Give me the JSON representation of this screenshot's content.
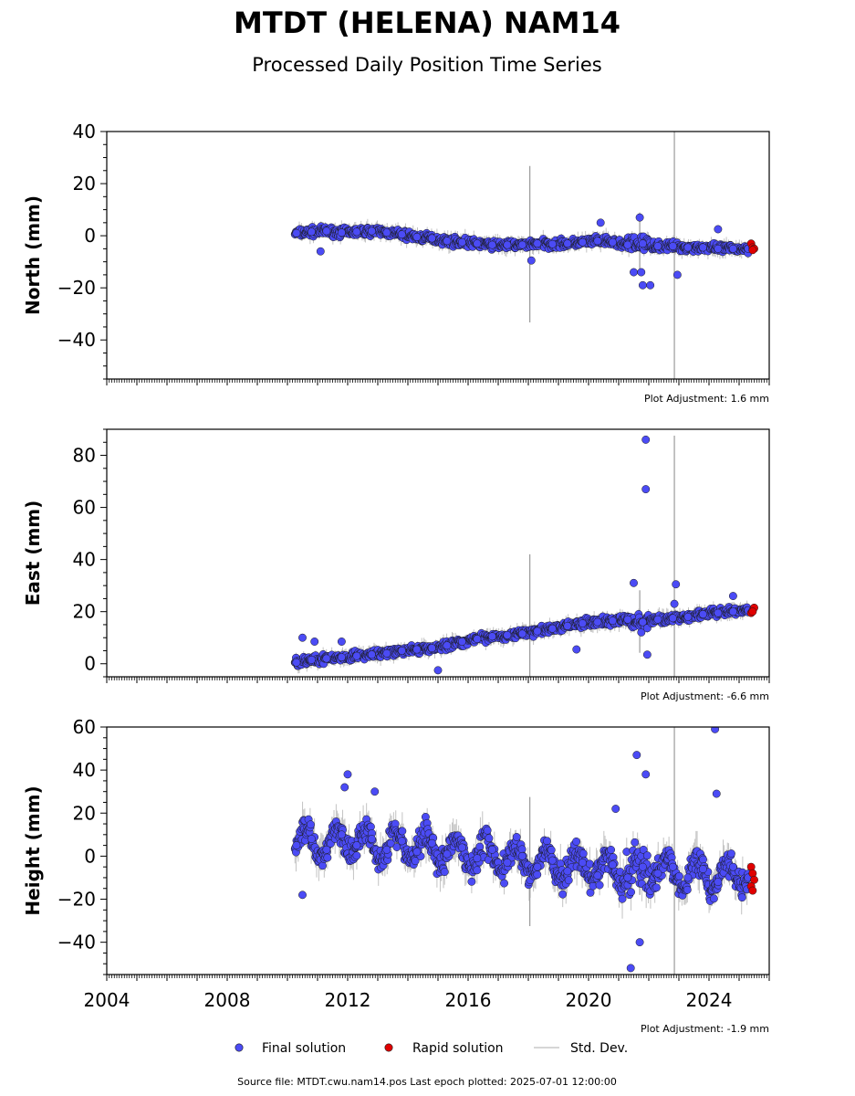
{
  "title": "MTDT (HELENA) NAM14",
  "subtitle": "Processed Daily Position Time Series",
  "footer": "Source file: MTDT.cwu.nam14.pos  Last epoch plotted: 2025-07-01 12:00:00",
  "legend": {
    "final_label": "Final solution",
    "rapid_label": "Rapid solution",
    "std_label": "Std. Dev."
  },
  "colors": {
    "final": "#4b4bf5",
    "rapid": "#e00000",
    "std": "#b4b4b4",
    "marker_edge": "#1a1a1a"
  },
  "chart_data": [
    {
      "type": "scatter",
      "ylabel": "North (mm)",
      "xlim": [
        2004,
        2026
      ],
      "ylim": [
        -55,
        40
      ],
      "yticks": [
        -40,
        -20,
        0,
        20,
        40
      ],
      "adjustment": "Plot Adjustment: 1.6 mm",
      "show_x_labels": false,
      "series": [
        {
          "name": "Final solution",
          "points": [
            [
              2010.3,
              1.0
            ],
            [
              2010.8,
              1.5
            ],
            [
              2011.3,
              1.8
            ],
            [
              2011.8,
              1.2
            ],
            [
              2012.3,
              1.5
            ],
            [
              2012.8,
              1.8
            ],
            [
              2013.3,
              1.2
            ],
            [
              2013.8,
              0.5
            ],
            [
              2014.3,
              -0.5
            ],
            [
              2014.8,
              -1.0
            ],
            [
              2015.3,
              -2.0
            ],
            [
              2015.8,
              -2.5
            ],
            [
              2016.3,
              -3.0
            ],
            [
              2016.8,
              -3.5
            ],
            [
              2017.3,
              -3.5
            ],
            [
              2017.8,
              -3.5
            ],
            [
              2018.3,
              -3.0
            ],
            [
              2018.8,
              -3.2
            ],
            [
              2019.3,
              -3.0
            ],
            [
              2019.8,
              -2.5
            ],
            [
              2020.3,
              -2.0
            ],
            [
              2020.8,
              -2.5
            ],
            [
              2021.3,
              -3.5
            ],
            [
              2021.8,
              -3.0
            ],
            [
              2022.3,
              -4.0
            ],
            [
              2022.8,
              -4.0
            ],
            [
              2023.3,
              -4.5
            ],
            [
              2023.8,
              -4.5
            ],
            [
              2024.3,
              -5.0
            ],
            [
              2024.8,
              -5.0
            ],
            [
              2025.3,
              -5.0
            ],
            [
              2011.1,
              -6.0
            ],
            [
              2018.1,
              -9.5
            ],
            [
              2021.5,
              -14.0
            ],
            [
              2021.75,
              -14.0
            ],
            [
              2021.8,
              -19.0
            ],
            [
              2022.05,
              -19.0
            ],
            [
              2022.95,
              -15.0
            ],
            [
              2024.3,
              2.5
            ],
            [
              2020.4,
              5.0
            ],
            [
              2021.7,
              7.0
            ]
          ]
        },
        {
          "name": "Rapid solution",
          "points": [
            [
              2025.4,
              -3.0
            ],
            [
              2025.45,
              -4.5
            ],
            [
              2025.5,
              -5.0
            ],
            [
              2025.45,
              -5.5
            ]
          ]
        }
      ]
    },
    {
      "type": "scatter",
      "ylabel": "East (mm)",
      "xlim": [
        2004,
        2026
      ],
      "ylim": [
        -5,
        90
      ],
      "yticks": [
        0,
        20,
        40,
        60,
        80
      ],
      "adjustment": "Plot Adjustment: -6.6 mm",
      "show_x_labels": false,
      "series": [
        {
          "name": "Final solution",
          "points": [
            [
              2010.3,
              0.5
            ],
            [
              2010.8,
              1.5
            ],
            [
              2011.3,
              2.0
            ],
            [
              2011.8,
              2.5
            ],
            [
              2012.3,
              3.0
            ],
            [
              2012.8,
              3.5
            ],
            [
              2013.3,
              4.0
            ],
            [
              2013.8,
              5.0
            ],
            [
              2014.3,
              5.5
            ],
            [
              2014.8,
              6.0
            ],
            [
              2015.3,
              7.0
            ],
            [
              2015.8,
              8.5
            ],
            [
              2016.3,
              9.5
            ],
            [
              2016.8,
              10.5
            ],
            [
              2017.3,
              11.0
            ],
            [
              2017.8,
              11.5
            ],
            [
              2018.3,
              12.5
            ],
            [
              2018.8,
              13.5
            ],
            [
              2019.3,
              14.5
            ],
            [
              2019.8,
              15.5
            ],
            [
              2020.3,
              16.0
            ],
            [
              2020.8,
              16.5
            ],
            [
              2021.3,
              17.0
            ],
            [
              2021.8,
              16.0
            ],
            [
              2022.3,
              17.0
            ],
            [
              2022.8,
              17.5
            ],
            [
              2023.3,
              18.0
            ],
            [
              2023.8,
              19.0
            ],
            [
              2024.3,
              19.5
            ],
            [
              2024.8,
              20.0
            ],
            [
              2025.3,
              20.5
            ],
            [
              2010.5,
              10.0
            ],
            [
              2010.9,
              8.5
            ],
            [
              2011.8,
              8.5
            ],
            [
              2015.0,
              -2.5
            ],
            [
              2019.6,
              5.5
            ],
            [
              2021.5,
              31.0
            ],
            [
              2021.9,
              86.0
            ],
            [
              2021.9,
              67.0
            ],
            [
              2021.95,
              3.5
            ],
            [
              2022.85,
              23.0
            ],
            [
              2022.9,
              30.5
            ],
            [
              2024.8,
              26.0
            ]
          ]
        },
        {
          "name": "Rapid solution",
          "points": [
            [
              2025.4,
              19.5
            ],
            [
              2025.45,
              20.5
            ],
            [
              2025.5,
              21.5
            ],
            [
              2025.45,
              20.0
            ]
          ]
        }
      ]
    },
    {
      "type": "scatter",
      "ylabel": "Height (mm)",
      "xlim": [
        2004,
        2026
      ],
      "ylim": [
        -55,
        60
      ],
      "yticks": [
        -40,
        -20,
        0,
        20,
        40,
        60
      ],
      "xticks": [
        2004,
        2008,
        2012,
        2016,
        2020,
        2024
      ],
      "adjustment": "Plot Adjustment: -1.9 mm",
      "show_x_labels": true,
      "series": [
        {
          "name": "Final solution",
          "points": [
            [
              2010.3,
              5.0
            ],
            [
              2010.8,
              8.0
            ],
            [
              2011.3,
              3.0
            ],
            [
              2011.8,
              10.0
            ],
            [
              2012.3,
              5.0
            ],
            [
              2012.8,
              8.0
            ],
            [
              2013.3,
              3.0
            ],
            [
              2013.8,
              7.0
            ],
            [
              2014.3,
              2.0
            ],
            [
              2014.8,
              6.0
            ],
            [
              2015.3,
              1.0
            ],
            [
              2015.8,
              4.0
            ],
            [
              2016.3,
              -1.0
            ],
            [
              2016.8,
              3.0
            ],
            [
              2017.3,
              -3.0
            ],
            [
              2017.8,
              0.0
            ],
            [
              2018.3,
              -5.0
            ],
            [
              2018.8,
              -2.0
            ],
            [
              2019.3,
              -7.0
            ],
            [
              2019.8,
              -3.0
            ],
            [
              2020.3,
              -9.0
            ],
            [
              2020.8,
              -4.0
            ],
            [
              2021.3,
              -10.0
            ],
            [
              2021.8,
              -5.0
            ],
            [
              2022.3,
              -8.0
            ],
            [
              2022.8,
              -5.0
            ],
            [
              2023.3,
              -10.0
            ],
            [
              2023.8,
              -6.0
            ],
            [
              2024.3,
              -12.0
            ],
            [
              2024.8,
              -5.0
            ],
            [
              2025.3,
              -10.0
            ],
            [
              2010.5,
              -18.0
            ],
            [
              2011.9,
              32.0
            ],
            [
              2012.0,
              38.0
            ],
            [
              2012.9,
              30.0
            ],
            [
              2021.6,
              47.0
            ],
            [
              2021.9,
              38.0
            ],
            [
              2021.4,
              -52.0
            ],
            [
              2021.7,
              -40.0
            ],
            [
              2024.2,
              59.0
            ],
            [
              2024.25,
              29.0
            ],
            [
              2020.9,
              22.0
            ]
          ]
        },
        {
          "name": "Rapid solution",
          "points": [
            [
              2025.4,
              -5.0
            ],
            [
              2025.45,
              -8.0
            ],
            [
              2025.5,
              -11.0
            ],
            [
              2025.4,
              -14.0
            ],
            [
              2025.45,
              -16.0
            ]
          ]
        }
      ]
    }
  ]
}
